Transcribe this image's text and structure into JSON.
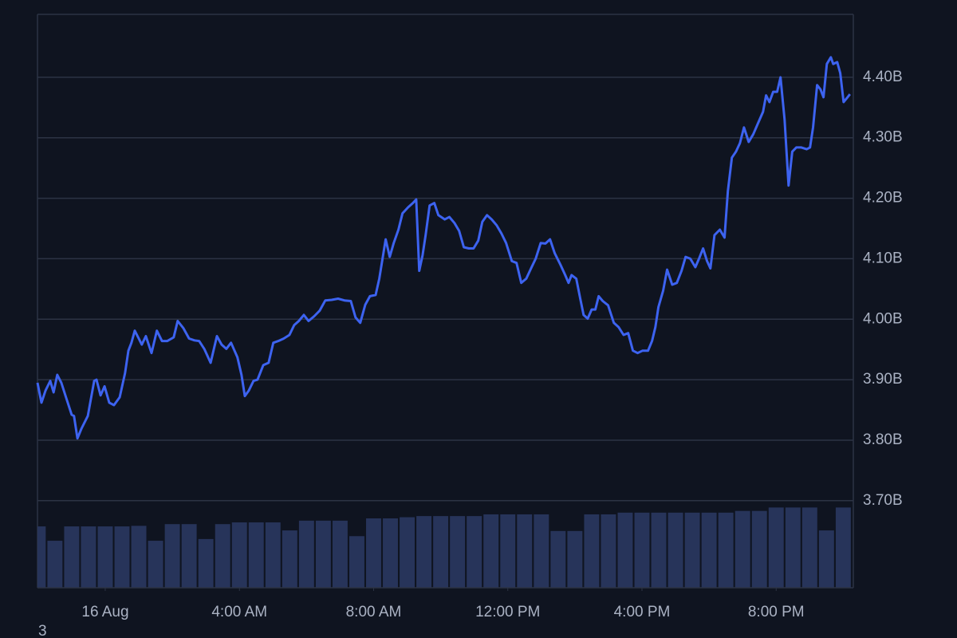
{
  "chart_data": {
    "type": "line",
    "annotation": "3",
    "x": [
      -2.02,
      -1.9,
      -1.78,
      -1.64,
      -1.54,
      -1.43,
      -1.31,
      -1.16,
      -1.0,
      -0.93,
      -0.83,
      -0.71,
      -0.52,
      -0.33,
      -0.26,
      -0.14,
      -0.02,
      0.12,
      0.26,
      0.43,
      0.59,
      0.69,
      0.78,
      0.88,
      1.0,
      1.09,
      1.21,
      1.38,
      1.54,
      1.69,
      1.85,
      2.04,
      2.16,
      2.33,
      2.5,
      2.66,
      2.8,
      2.95,
      3.14,
      3.33,
      3.47,
      3.61,
      3.75,
      3.94,
      4.06,
      4.16,
      4.28,
      4.42,
      4.54,
      4.71,
      4.87,
      5.01,
      5.16,
      5.32,
      5.49,
      5.63,
      5.77,
      5.92,
      6.06,
      6.23,
      6.39,
      6.56,
      6.75,
      6.94,
      7.13,
      7.32,
      7.46,
      7.6,
      7.75,
      7.89,
      8.06,
      8.17,
      8.36,
      8.48,
      8.6,
      8.74,
      8.86,
      9.03,
      9.17,
      9.27,
      9.36,
      9.46,
      9.55,
      9.67,
      9.81,
      9.93,
      10.12,
      10.26,
      10.41,
      10.55,
      10.69,
      10.84,
      10.98,
      11.12,
      11.24,
      11.38,
      11.52,
      11.67,
      11.81,
      11.95,
      12.12,
      12.26,
      12.4,
      12.55,
      12.71,
      12.83,
      12.98,
      13.12,
      13.26,
      13.4,
      13.57,
      13.71,
      13.81,
      13.9,
      14.04,
      14.16,
      14.26,
      14.38,
      14.5,
      14.61,
      14.71,
      14.83,
      14.99,
      15.16,
      15.3,
      15.45,
      15.59,
      15.73,
      15.87,
      16.02,
      16.18,
      16.3,
      16.4,
      16.49,
      16.63,
      16.75,
      16.9,
      17.04,
      17.18,
      17.3,
      17.44,
      17.59,
      17.7,
      17.82,
      17.94,
      18.04,
      18.16,
      18.32,
      18.46,
      18.56,
      18.68,
      18.8,
      18.92,
      19.04,
      19.18,
      19.32,
      19.46,
      19.61,
      19.7,
      19.8,
      19.91,
      20.03,
      20.13,
      20.25,
      20.37,
      20.48,
      20.6,
      20.75,
      20.91,
      21.01,
      21.1,
      21.22,
      21.32,
      21.41,
      21.51,
      21.63,
      21.7,
      21.82,
      21.91,
      22.01,
      22.13,
      22.2
    ],
    "series": [
      {
        "color": "#3d63f0",
        "values": [
          3.895,
          3.862,
          3.882,
          3.898,
          3.879,
          3.908,
          3.895,
          3.869,
          3.842,
          3.84,
          3.803,
          3.819,
          3.84,
          3.898,
          3.9,
          3.874,
          3.889,
          3.862,
          3.858,
          3.871,
          3.911,
          3.948,
          3.961,
          3.981,
          3.968,
          3.958,
          3.972,
          3.944,
          3.981,
          3.964,
          3.964,
          3.97,
          3.997,
          3.985,
          3.968,
          3.965,
          3.964,
          3.951,
          3.928,
          3.972,
          3.958,
          3.951,
          3.961,
          3.937,
          3.908,
          3.873,
          3.882,
          3.898,
          3.9,
          3.924,
          3.928,
          3.961,
          3.964,
          3.968,
          3.974,
          3.99,
          3.997,
          4.007,
          3.997,
          4.005,
          4.014,
          4.031,
          4.032,
          4.034,
          4.031,
          4.03,
          4.003,
          3.994,
          4.024,
          4.038,
          4.04,
          4.067,
          4.132,
          4.103,
          4.126,
          4.148,
          4.175,
          4.185,
          4.192,
          4.198,
          4.08,
          4.106,
          4.139,
          4.188,
          4.192,
          4.172,
          4.165,
          4.169,
          4.159,
          4.146,
          4.119,
          4.117,
          4.117,
          4.13,
          4.161,
          4.172,
          4.165,
          4.155,
          4.142,
          4.126,
          4.096,
          4.093,
          4.06,
          4.067,
          4.086,
          4.1,
          4.126,
          4.125,
          4.132,
          4.109,
          4.09,
          4.073,
          4.06,
          4.073,
          4.067,
          4.034,
          4.007,
          4.001,
          4.016,
          4.016,
          4.038,
          4.03,
          4.023,
          3.994,
          3.987,
          3.974,
          3.977,
          3.948,
          3.944,
          3.948,
          3.948,
          3.964,
          3.987,
          4.02,
          4.047,
          4.082,
          4.057,
          4.06,
          4.08,
          4.103,
          4.1,
          4.086,
          4.1,
          4.117,
          4.096,
          4.084,
          4.139,
          4.148,
          4.135,
          4.212,
          4.267,
          4.277,
          4.291,
          4.317,
          4.293,
          4.306,
          4.324,
          4.343,
          4.37,
          4.359,
          4.376,
          4.376,
          4.4,
          4.33,
          4.221,
          4.277,
          4.284,
          4.284,
          4.281,
          4.284,
          4.317,
          4.387,
          4.38,
          4.367,
          4.422,
          4.433,
          4.422,
          4.425,
          4.407,
          4.359,
          4.367,
          4.372
        ]
      }
    ],
    "bars": {
      "color": "#27345a",
      "x": [
        -2.0,
        -1.5,
        -1.0,
        -0.5,
        0.0,
        0.5,
        1.0,
        1.5,
        2.0,
        2.5,
        3.0,
        3.5,
        4.0,
        4.5,
        5.0,
        5.5,
        6.0,
        6.5,
        7.0,
        7.5,
        8.0,
        8.5,
        9.0,
        9.5,
        10.0,
        10.5,
        11.0,
        11.5,
        12.0,
        12.5,
        13.0,
        13.5,
        14.0,
        14.5,
        15.0,
        15.5,
        16.0,
        16.5,
        17.0,
        17.5,
        18.0,
        18.5,
        19.0,
        19.5,
        20.0,
        20.5,
        21.0,
        21.5,
        22.0
      ],
      "values": [
        10.7,
        8.2,
        10.7,
        10.7,
        10.7,
        10.7,
        10.8,
        8.2,
        11.1,
        11.1,
        8.5,
        11.1,
        11.4,
        11.4,
        11.4,
        10.0,
        11.7,
        11.7,
        11.7,
        9.0,
        12.1,
        12.1,
        12.3,
        12.5,
        12.5,
        12.5,
        12.5,
        12.8,
        12.8,
        12.8,
        12.8,
        9.9,
        9.9,
        12.8,
        12.8,
        13.1,
        13.1,
        13.1,
        13.1,
        13.1,
        13.1,
        13.1,
        13.4,
        13.4,
        14.0,
        14.0,
        14.0,
        10.0,
        14.0
      ]
    },
    "y2lim": [
      0,
      100
    ],
    "xlim": [
      -2.02,
      22.3
    ],
    "xticks": [
      {
        "value": 0,
        "label": "16 Aug"
      },
      {
        "value": 4,
        "label": "4:00 AM"
      },
      {
        "value": 8,
        "label": "8:00 AM"
      },
      {
        "value": 12,
        "label": "12:00 PM"
      },
      {
        "value": 16,
        "label": "4:00 PM"
      },
      {
        "value": 20,
        "label": "8:00 PM"
      }
    ],
    "ylim": [
      3.556,
      4.504
    ],
    "yticks": [
      {
        "value": 3.7,
        "label": "3.70B"
      },
      {
        "value": 3.8,
        "label": "3.80B"
      },
      {
        "value": 3.9,
        "label": "3.90B"
      },
      {
        "value": 4.0,
        "label": "4.00B"
      },
      {
        "value": 4.1,
        "label": "4.10B"
      },
      {
        "value": 4.2,
        "label": "4.20B"
      },
      {
        "value": 4.3,
        "label": "4.30B"
      },
      {
        "value": 4.4,
        "label": "4.40B"
      }
    ],
    "grid": true
  }
}
